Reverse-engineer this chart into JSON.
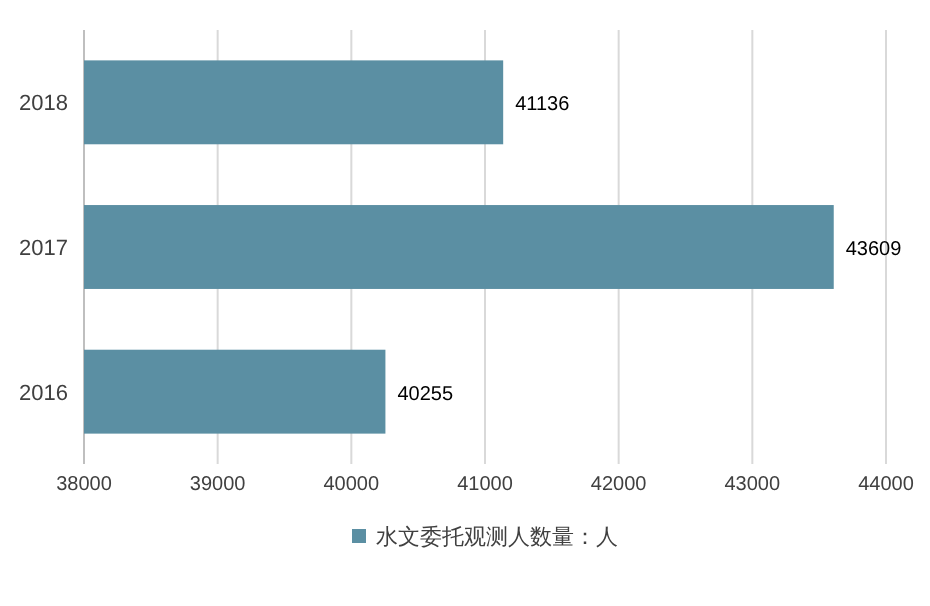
{
  "chart_data": {
    "type": "bar",
    "orientation": "horizontal",
    "categories": [
      "2018",
      "2017",
      "2016"
    ],
    "series": [
      {
        "name": "水文委托观测人数量：人",
        "color": "#5b8fa3",
        "values": [
          41136,
          43609,
          40255
        ]
      }
    ],
    "xlim": [
      38000,
      44000
    ],
    "xticks": [
      38000,
      39000,
      40000,
      41000,
      42000,
      43000,
      44000
    ],
    "grid": "x",
    "legend": "bottom",
    "data_labels": true
  }
}
